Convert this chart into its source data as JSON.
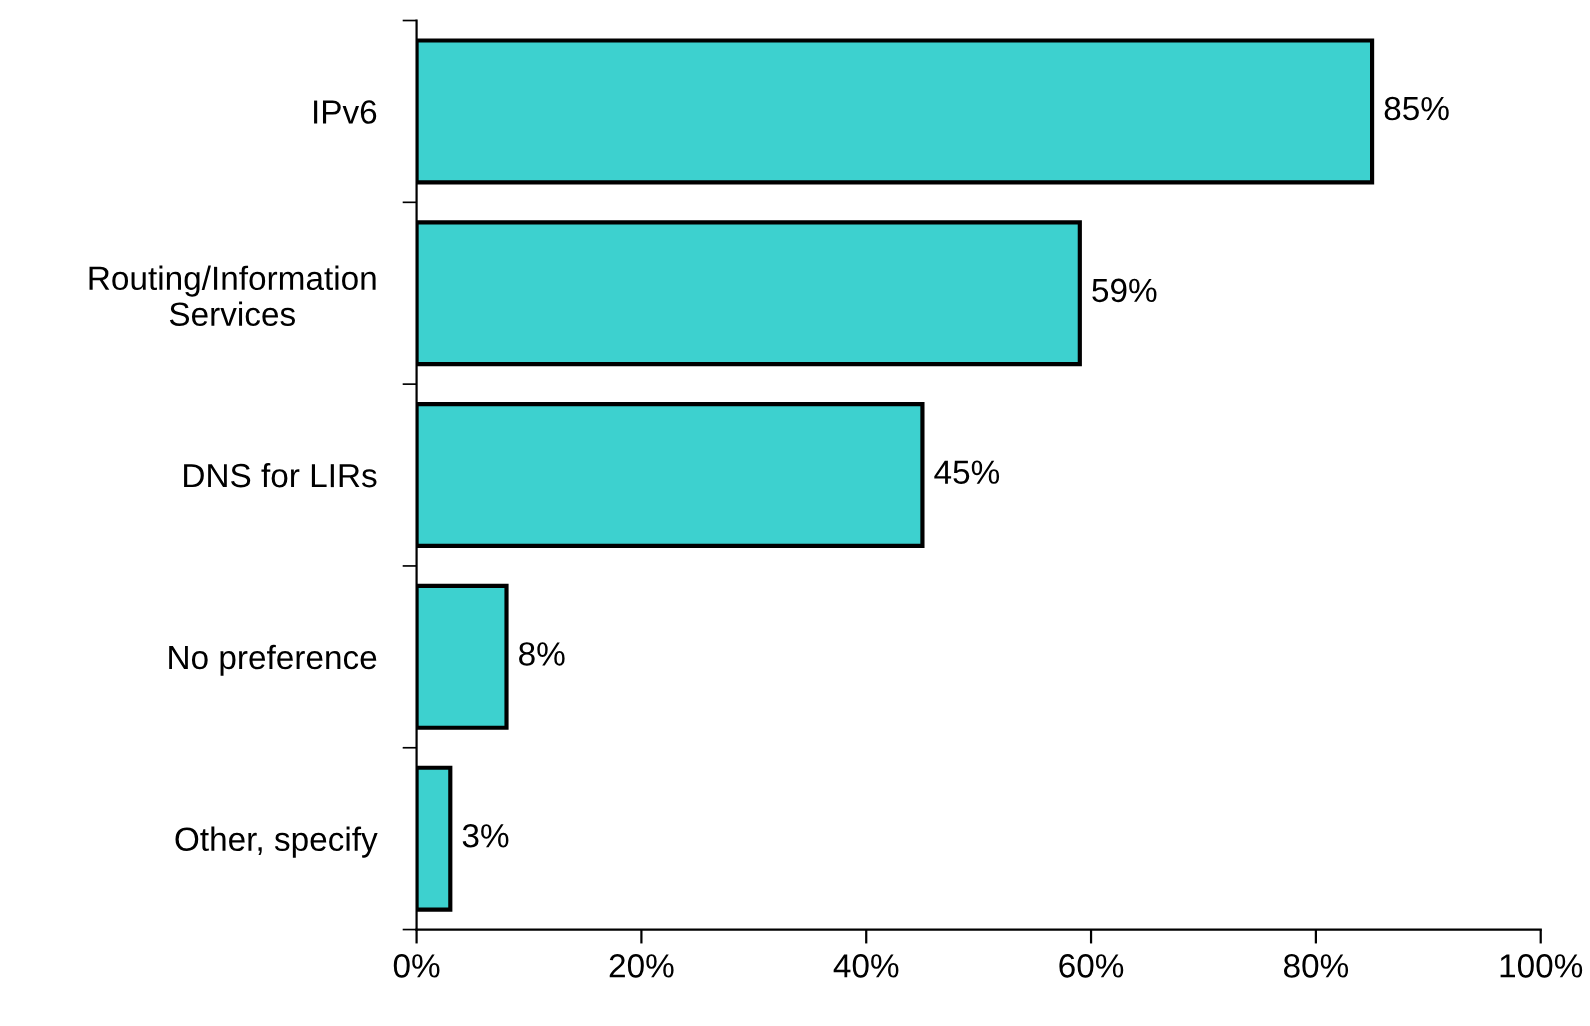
{
  "chart_data": {
    "type": "bar",
    "orientation": "horizontal",
    "categories": [
      "IPv6",
      "Routing/Information\nServices",
      "DNS for LIRs",
      "No preference",
      "Other, specify"
    ],
    "values": [
      85,
      59,
      45,
      8,
      3
    ],
    "value_labels": [
      "85%",
      "59%",
      "45%",
      "8%",
      "3%"
    ],
    "color": "#3dd1cf",
    "xlim": [
      0,
      100
    ],
    "xticks": [
      {
        "value": 0,
        "label": "0%"
      },
      {
        "value": 20,
        "label": "20%"
      },
      {
        "value": 40,
        "label": "40%"
      },
      {
        "value": 60,
        "label": "60%"
      },
      {
        "value": 80,
        "label": "80%"
      },
      {
        "value": 100,
        "label": "100%"
      }
    ],
    "grid": false,
    "legend": false
  }
}
